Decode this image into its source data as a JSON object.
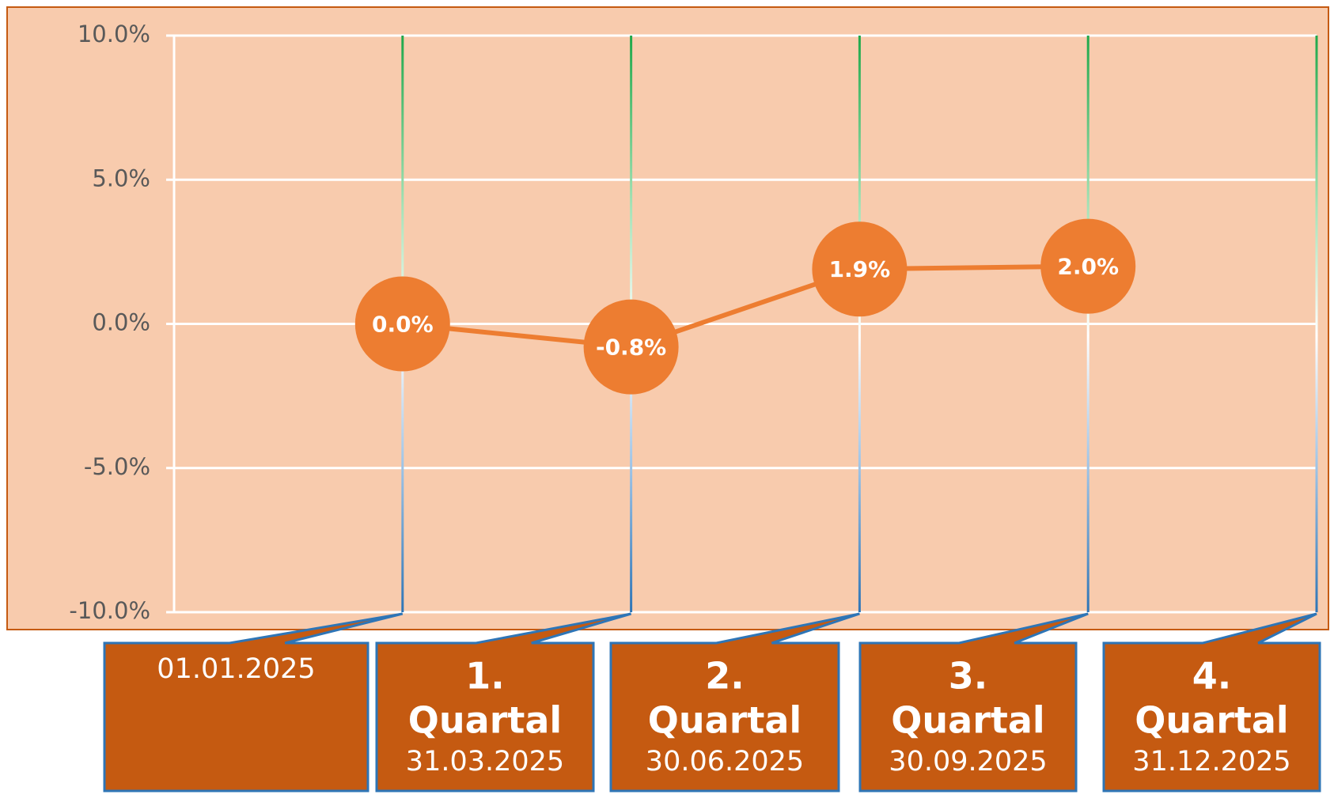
{
  "chart_data": {
    "type": "line",
    "categories": [
      [
        "01.01.2025"
      ],
      [
        "1.",
        "Quartal",
        "31.03.2025"
      ],
      [
        "2.",
        "Quartal",
        "30.06.2025"
      ],
      [
        "3.",
        "Quartal",
        "30.09.2025"
      ],
      [
        "4.",
        "Quartal",
        "31.12.2025"
      ]
    ],
    "values": [
      0.0,
      -0.8,
      1.9,
      2.0,
      null
    ],
    "value_labels": [
      "0.0%",
      "-0.8%",
      "1.9%",
      "2.0%",
      null
    ],
    "color": "#ed7d31",
    "ylim": [
      -10,
      10
    ],
    "yticks": [
      {
        "value": -10,
        "label": "-10.0%"
      },
      {
        "value": -5,
        "label": "-5.0%"
      },
      {
        "value": 0,
        "label": "0.0%"
      },
      {
        "value": 5,
        "label": "5.0%"
      },
      {
        "value": 10,
        "label": "10.0%"
      }
    ],
    "grid": true
  }
}
